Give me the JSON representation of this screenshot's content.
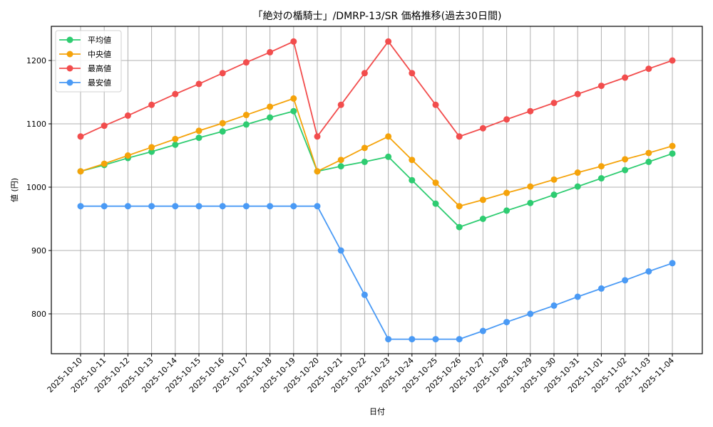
{
  "chart_data": {
    "type": "line",
    "title": "「絶対の楯騎士」/DMRP-13/SR 価格推移(過去30日間)",
    "xlabel": "日付",
    "ylabel": "値 (円)",
    "ylim": [
      736,
      1250
    ],
    "yticks": [
      800,
      900,
      1000,
      1100,
      1200
    ],
    "grid": true,
    "legend_position": "upper left",
    "categories": [
      "2025-10-10",
      "2025-10-11",
      "2025-10-12",
      "2025-10-13",
      "2025-10-14",
      "2025-10-15",
      "2025-10-16",
      "2025-10-17",
      "2025-10-18",
      "2025-10-19",
      "2025-10-20",
      "2025-10-21",
      "2025-10-22",
      "2025-10-23",
      "2025-10-24",
      "2025-10-25",
      "2025-10-26",
      "2025-10-27",
      "2025-10-28",
      "2025-10-29",
      "2025-10-30",
      "2025-10-31",
      "2025-11-01",
      "2025-11-02",
      "2025-11-03",
      "2025-11-04"
    ],
    "series": [
      {
        "name": "平均値",
        "color": "#2ecc71",
        "values": [
          1025,
          1035,
          1046,
          1056,
          1067,
          1078,
          1088,
          1099,
          1110,
          1120,
          1025,
          1033,
          1040,
          1048,
          1011,
          974,
          937,
          950,
          963,
          975,
          988,
          1001,
          1014,
          1027,
          1040,
          1053
        ]
      },
      {
        "name": "中央値",
        "color": "#f5a30a",
        "values": [
          1025,
          1037,
          1050,
          1063,
          1076,
          1089,
          1101,
          1114,
          1127,
          1140,
          1025,
          1043,
          1062,
          1080,
          1043,
          1007,
          970,
          980,
          991,
          1001,
          1012,
          1023,
          1033,
          1044,
          1054,
          1065
        ]
      },
      {
        "name": "最高値",
        "color": "#f24d4d",
        "values": [
          1080,
          1097,
          1113,
          1130,
          1147,
          1163,
          1180,
          1197,
          1213,
          1230,
          1080,
          1130,
          1180,
          1230,
          1180,
          1130,
          1080,
          1093,
          1107,
          1120,
          1133,
          1147,
          1160,
          1173,
          1187,
          1200
        ]
      },
      {
        "name": "最安値",
        "color": "#4a9af5",
        "values": [
          970,
          970,
          970,
          970,
          970,
          970,
          970,
          970,
          970,
          970,
          970,
          900,
          830,
          760,
          760,
          760,
          760,
          773,
          787,
          800,
          813,
          827,
          840,
          853,
          867,
          880
        ]
      }
    ]
  }
}
